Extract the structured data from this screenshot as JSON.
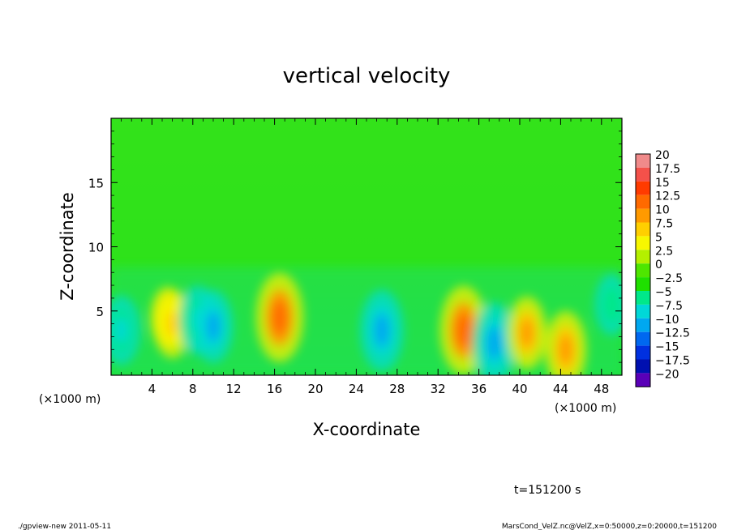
{
  "chart_data": {
    "type": "heatmap",
    "title": "vertical velocity",
    "xlabel": "X-coordinate",
    "ylabel": "Z-coordinate",
    "x_unit_left": "(×1000 m)",
    "x_unit_right": "(×1000 m)",
    "x_range": [
      0,
      50
    ],
    "y_range": [
      0,
      20
    ],
    "x_ticks": [
      4,
      8,
      12,
      16,
      20,
      24,
      28,
      32,
      36,
      40,
      44,
      48
    ],
    "y_ticks": [
      5,
      10,
      15
    ],
    "colorbar": {
      "levels": [
        20,
        17.5,
        15,
        12.5,
        10,
        7.5,
        5,
        2.5,
        0,
        -2.5,
        -5,
        -7.5,
        -10,
        -12.5,
        -15,
        -17.5,
        -20
      ],
      "labels": [
        "20",
        "17.5",
        "15",
        "12.5",
        "10",
        "7.5",
        "5",
        "2.5",
        "0",
        "−2.5",
        "−5",
        "−7.5",
        "−10",
        "−12.5",
        "−15",
        "−17.5",
        "−20"
      ],
      "colors": [
        "#f08a8a",
        "#f4514a",
        "#ff3b00",
        "#ff6a00",
        "#ff9a00",
        "#ffcf00",
        "#f7f700",
        "#b4f000",
        "#4ee600",
        "#1fe000",
        "#00e88a",
        "#00d8d8",
        "#00a8f0",
        "#0068f0",
        "#0030e0",
        "#0010b0",
        "#5a00b8"
      ]
    },
    "features": [
      {
        "x": 1.0,
        "z": 3.5,
        "value": -8
      },
      {
        "x": 5.5,
        "z": 4.5,
        "value": 6
      },
      {
        "x": 6.0,
        "z": 4.0,
        "value": 8
      },
      {
        "x": 8.5,
        "z": 4.3,
        "value": -8
      },
      {
        "x": 10.0,
        "z": 3.8,
        "value": -9
      },
      {
        "x": 16.5,
        "z": 4.5,
        "value": 13
      },
      {
        "x": 26.5,
        "z": 3.5,
        "value": -11
      },
      {
        "x": 34.5,
        "z": 3.5,
        "value": 13
      },
      {
        "x": 37.5,
        "z": 2.5,
        "value": -11
      },
      {
        "x": 40.7,
        "z": 3.3,
        "value": 9
      },
      {
        "x": 44.5,
        "z": 2.0,
        "value": 10
      },
      {
        "x": 49.0,
        "z": 5.5,
        "value": -6
      }
    ]
  },
  "annotations": {
    "time": "t=151200 s",
    "footer_left": "./gpview-new   2011-05-11",
    "footer_right": "MarsCond_VelZ.nc@VelZ,x=0:50000,z=0:20000,t=151200"
  }
}
